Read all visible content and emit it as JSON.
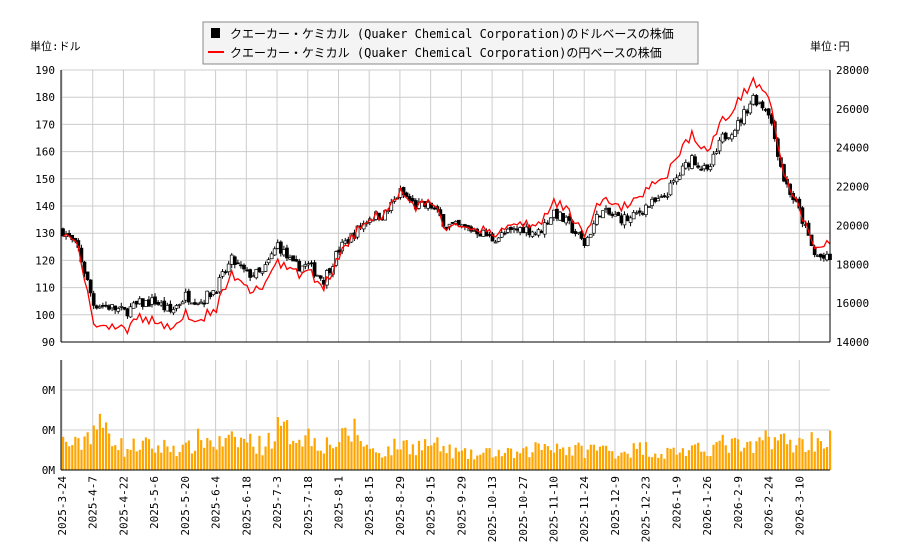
{
  "legend": {
    "usd_label": "クエーカー・ケミカル (Quaker Chemical Corporation)のドルベースの株価",
    "jpy_label": "クエーカー・ケミカル (Quaker Chemical Corporation)の円ベースの株価"
  },
  "unit_left": "単位:ドル",
  "unit_right": "単位:円",
  "colors": {
    "candle": "#000000",
    "jpy_line": "#ff0000",
    "volume": "#ffa500",
    "grid": "#cccccc"
  },
  "chart_data": [
    {
      "type": "candlestick",
      "y_ticks_left": [
        "190",
        "180",
        "170",
        "160",
        "150",
        "140",
        "130",
        "120",
        "110",
        "100",
        "90"
      ],
      "y_ticks_right": [
        "28000",
        "26000",
        "24000",
        "22000",
        "20000",
        "18000",
        "16000",
        "14000"
      ],
      "ylim_usd": [
        90,
        190
      ],
      "ylim_jpy": [
        14000,
        28000
      ],
      "grid": true,
      "legend_position": "top-center",
      "x_ticks": [
        "2025-3-24",
        "2025-4-7",
        "2025-4-22",
        "2025-5-6",
        "2025-5-20",
        "2025-6-4",
        "2025-6-18",
        "2025-7-3",
        "2025-7-18",
        "2025-8-1",
        "2025-8-15",
        "2025-8-29",
        "2025-9-15",
        "2025-9-29",
        "2025-10-13",
        "2025-10-27",
        "2025-11-10",
        "2025-11-24",
        "2025-12-9",
        "2025-12-23",
        "2026-1-9",
        "2026-1-26",
        "2026-2-9",
        "2026-2-24",
        "2026-3-10"
      ],
      "weekly_close_usd": [
        131,
        124,
        104,
        103,
        101,
        104,
        105,
        101,
        107,
        105,
        110,
        120,
        115,
        115,
        126,
        118,
        118,
        113,
        124,
        130,
        136,
        137,
        145,
        140,
        140,
        133,
        132,
        131,
        128,
        130,
        132,
        130,
        138,
        133,
        126,
        138,
        136,
        135,
        140,
        142,
        150,
        158,
        152,
        165,
        170,
        180,
        175,
        150,
        138,
        122,
        120
      ],
      "weekly_close_jpy": [
        19700,
        18800,
        15000,
        14800,
        14600,
        15200,
        15100,
        14600,
        15500,
        15200,
        15800,
        17400,
        16700,
        16600,
        18200,
        17500,
        17600,
        16900,
        18400,
        19600,
        20400,
        20600,
        21700,
        20900,
        21200,
        19900,
        19800,
        19900,
        19600,
        19800,
        20200,
        20000,
        21300,
        20600,
        19500,
        21300,
        21000,
        21000,
        21900,
        22200,
        23400,
        24800,
        23600,
        25400,
        26400,
        27500,
        26800,
        22700,
        20800,
        18800,
        19000
      ]
    },
    {
      "type": "bar",
      "y_ticks": [
        "0M",
        "0M",
        "0M"
      ],
      "weekly_volume_m": [
        0.14,
        0.12,
        0.22,
        0.2,
        0.1,
        0.13,
        0.11,
        0.12,
        0.1,
        0.16,
        0.13,
        0.14,
        0.15,
        0.12,
        0.2,
        0.18,
        0.17,
        0.13,
        0.14,
        0.2,
        0.1,
        0.09,
        0.13,
        0.12,
        0.13,
        0.1,
        0.08,
        0.07,
        0.09,
        0.08,
        0.08,
        0.12,
        0.13,
        0.1,
        0.1,
        0.11,
        0.09,
        0.1,
        0.11,
        0.08,
        0.1,
        0.09,
        0.11,
        0.13,
        0.12,
        0.1,
        0.18,
        0.14,
        0.13,
        0.15,
        0.15
      ]
    }
  ]
}
